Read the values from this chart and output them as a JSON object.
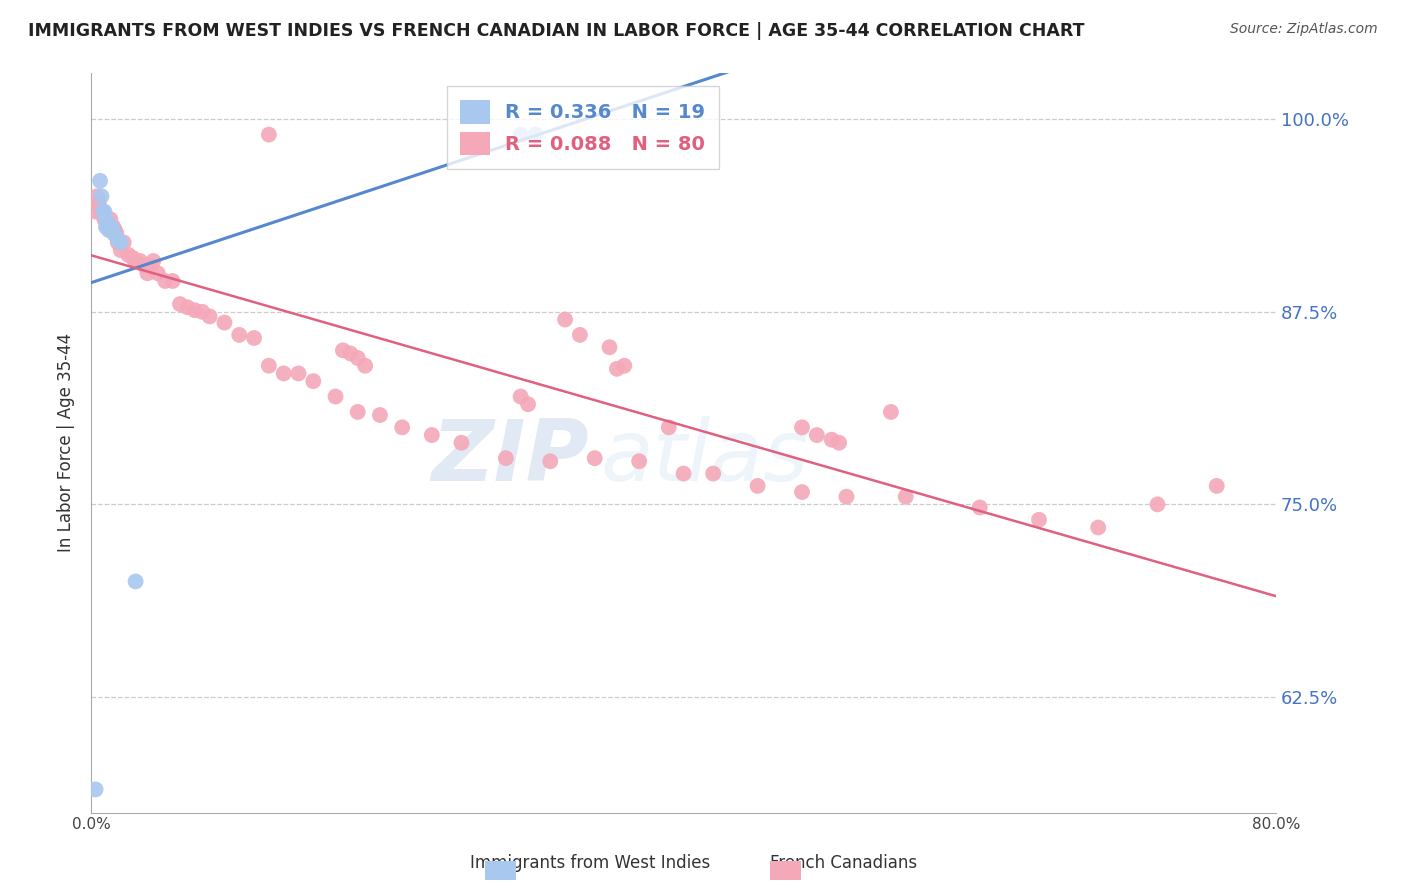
{
  "title": "IMMIGRANTS FROM WEST INDIES VS FRENCH CANADIAN IN LABOR FORCE | AGE 35-44 CORRELATION CHART",
  "source": "Source: ZipAtlas.com",
  "ylabel": "In Labor Force | Age 35-44",
  "xmin": 0.0,
  "xmax": 0.8,
  "ymin": 0.55,
  "ymax": 1.03,
  "yticks": [
    0.625,
    0.75,
    0.875,
    1.0
  ],
  "ytick_labels": [
    "62.5%",
    "75.0%",
    "87.5%",
    "100.0%"
  ],
  "xticks": [
    0.0,
    0.1,
    0.2,
    0.3,
    0.4,
    0.5,
    0.6,
    0.7,
    0.8
  ],
  "xtick_labels": [
    "0.0%",
    "",
    "",
    "",
    "",
    "",
    "",
    "",
    "80.0%"
  ],
  "legend_blue_r": "0.336",
  "legend_blue_n": "19",
  "legend_pink_r": "0.088",
  "legend_pink_n": "80",
  "blue_color": "#a8c8f0",
  "pink_color": "#f4a8b8",
  "blue_line_color": "#5588cc",
  "pink_line_color": "#e06080",
  "watermark_zip": "ZIP",
  "watermark_atlas": "atlas",
  "blue_x": [
    0.003,
    0.006,
    0.007,
    0.008,
    0.009,
    0.01,
    0.01,
    0.011,
    0.012,
    0.012,
    0.013,
    0.014,
    0.015,
    0.016,
    0.018,
    0.02,
    0.03,
    0.29,
    0.3
  ],
  "blue_y": [
    0.565,
    0.96,
    0.95,
    0.94,
    0.94,
    0.935,
    0.93,
    0.93,
    0.93,
    0.928,
    0.928,
    0.93,
    0.927,
    0.925,
    0.922,
    0.92,
    0.7,
    0.99,
    0.99
  ],
  "pink_x": [
    0.003,
    0.004,
    0.005,
    0.006,
    0.007,
    0.008,
    0.009,
    0.01,
    0.011,
    0.012,
    0.013,
    0.014,
    0.015,
    0.016,
    0.017,
    0.018,
    0.02,
    0.022,
    0.025,
    0.028,
    0.03,
    0.033,
    0.036,
    0.038,
    0.04,
    0.042,
    0.045,
    0.05,
    0.055,
    0.06,
    0.065,
    0.07,
    0.075,
    0.08,
    0.09,
    0.1,
    0.11,
    0.12,
    0.13,
    0.14,
    0.15,
    0.165,
    0.18,
    0.195,
    0.21,
    0.23,
    0.25,
    0.28,
    0.31,
    0.34,
    0.37,
    0.4,
    0.42,
    0.45,
    0.48,
    0.51,
    0.55,
    0.6,
    0.64,
    0.68,
    0.72,
    0.76,
    0.12,
    0.32,
    0.33,
    0.35,
    0.54,
    0.29,
    0.48,
    0.49,
    0.5,
    0.505,
    0.39,
    0.355,
    0.36,
    0.17,
    0.175,
    0.18,
    0.185,
    0.295
  ],
  "pink_y": [
    0.94,
    0.95,
    0.945,
    0.942,
    0.94,
    0.938,
    0.935,
    0.934,
    0.932,
    0.932,
    0.935,
    0.93,
    0.93,
    0.928,
    0.926,
    0.92,
    0.915,
    0.92,
    0.912,
    0.91,
    0.908,
    0.908,
    0.905,
    0.9,
    0.905,
    0.908,
    0.9,
    0.895,
    0.895,
    0.88,
    0.878,
    0.876,
    0.875,
    0.872,
    0.868,
    0.86,
    0.858,
    0.84,
    0.835,
    0.835,
    0.83,
    0.82,
    0.81,
    0.808,
    0.8,
    0.795,
    0.79,
    0.78,
    0.778,
    0.78,
    0.778,
    0.77,
    0.77,
    0.762,
    0.758,
    0.755,
    0.755,
    0.748,
    0.74,
    0.735,
    0.75,
    0.762,
    0.99,
    0.87,
    0.86,
    0.852,
    0.81,
    0.82,
    0.8,
    0.795,
    0.792,
    0.79,
    0.8,
    0.838,
    0.84,
    0.85,
    0.848,
    0.845,
    0.84,
    0.815
  ]
}
